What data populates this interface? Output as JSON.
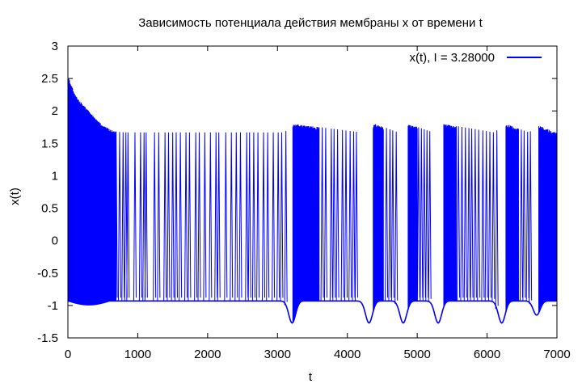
{
  "chart_data": {
    "type": "line",
    "title": "Зависимость потенциала действия мембраны x от времени t",
    "xlabel": "t",
    "ylabel": "x(t)",
    "xlim": [
      0,
      7000
    ],
    "ylim": [
      -1.5,
      3
    ],
    "x_ticks": [
      "0",
      "1000",
      "2000",
      "3000",
      "4000",
      "5000",
      "6000",
      "7000"
    ],
    "y_ticks": [
      "-1.5",
      "-1",
      "-0.5",
      "0",
      "0.5",
      "1",
      "1.5",
      "2",
      "2.5",
      "3"
    ],
    "grid": false,
    "legend_position": "top-right",
    "series": [
      {
        "name": "x(t), I = 3.28000",
        "color": "#0000ff",
        "envelope": {
          "upper": [
            [
              0,
              2.55
            ],
            [
              100,
              2.25
            ],
            [
              200,
              2.12
            ],
            [
              300,
              2.0
            ],
            [
              400,
              1.88
            ],
            [
              500,
              1.78
            ],
            [
              600,
              1.72
            ],
            [
              700,
              1.68
            ],
            [
              800,
              1.67
            ],
            [
              3000,
              1.67
            ],
            [
              3100,
              1.67
            ],
            [
              3230,
              1.8
            ],
            [
              4200,
              1.67
            ],
            [
              4400,
              1.8
            ],
            [
              4700,
              1.68
            ],
            [
              4870,
              1.8
            ],
            [
              5200,
              1.68
            ],
            [
              5380,
              1.8
            ],
            [
              6100,
              1.67
            ],
            [
              6270,
              1.8
            ],
            [
              6600,
              1.67
            ],
            [
              6740,
              1.78
            ],
            [
              7000,
              1.66
            ]
          ],
          "lower": [
            [
              0,
              -0.93
            ],
            [
              300,
              -1.0
            ],
            [
              700,
              -0.98
            ],
            [
              900,
              -0.95
            ],
            [
              3000,
              -0.92
            ],
            [
              3150,
              -1.1
            ],
            [
              3200,
              -1.27
            ],
            [
              3250,
              -0.95
            ],
            [
              4300,
              -1.27
            ],
            [
              4800,
              -1.27
            ],
            [
              5300,
              -1.27
            ],
            [
              6200,
              -1.27
            ],
            [
              6700,
              -1.15
            ],
            [
              7000,
              -0.92
            ]
          ]
        },
        "dense_bursts": [
          [
            0,
            690
          ],
          [
            3220,
            3600
          ],
          [
            4370,
            4520
          ],
          [
            4870,
            5000
          ],
          [
            5380,
            5560
          ],
          [
            6270,
            6450
          ],
          [
            6740,
            7000
          ]
        ],
        "spikes": [
          690,
          740,
          790,
          830,
          860,
          960,
          1040,
          1090,
          1120,
          1240,
          1300,
          1390,
          1440,
          1500,
          1550,
          1610,
          1690,
          1740,
          1830,
          1880,
          1960,
          2040,
          2120,
          2160,
          2260,
          2340,
          2410,
          2470,
          2560,
          2600,
          2660,
          2720,
          2800,
          2860,
          2940,
          3010,
          3060,
          3120,
          3640,
          3690,
          3770,
          3810,
          3860,
          3930,
          3980,
          4040,
          4090,
          4130,
          4560,
          4610,
          4650,
          4700,
          5020,
          5060,
          5100,
          5140,
          5180,
          5590,
          5640,
          5690,
          5740,
          5780,
          5830,
          5880,
          5940,
          5990,
          6040,
          6090,
          6140,
          6490,
          6530,
          6580,
          6620
        ],
        "troughs": [
          [
            3210,
            -1.27
          ],
          [
            4310,
            -1.27
          ],
          [
            4800,
            -1.27
          ],
          [
            5300,
            -1.27
          ],
          [
            6210,
            -1.27
          ],
          [
            6710,
            -1.15
          ]
        ]
      }
    ]
  }
}
